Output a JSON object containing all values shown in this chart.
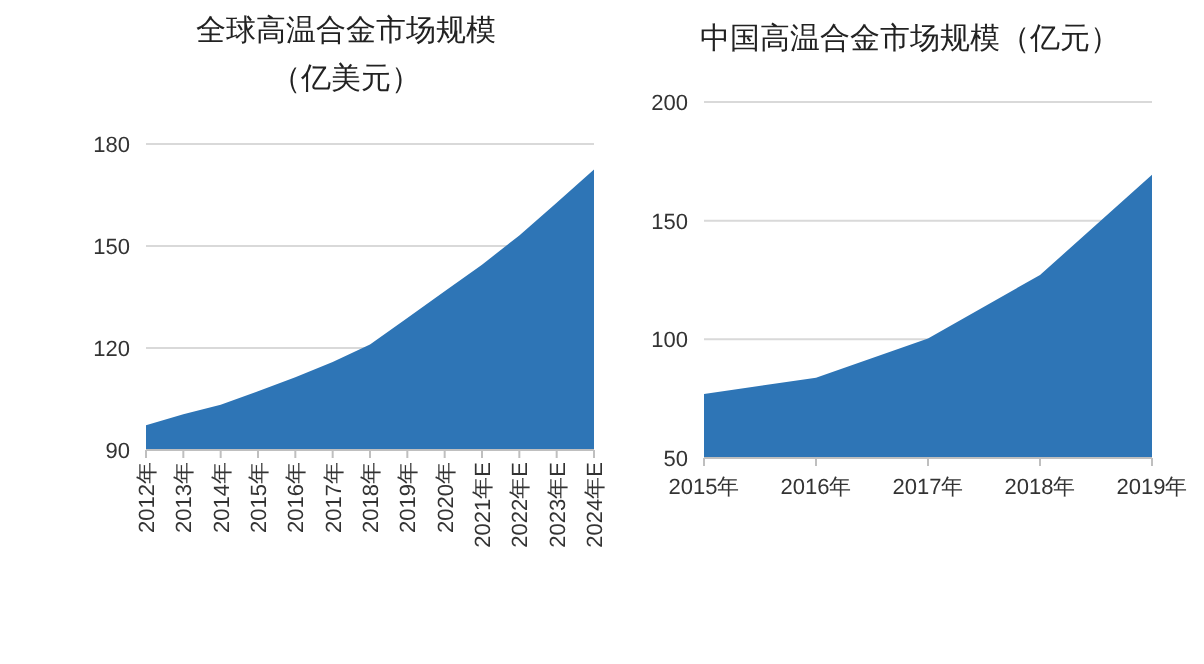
{
  "chart_data": [
    {
      "type": "area",
      "title": "全球高温合金市场规模（亿美元）",
      "categories": [
        "2012年",
        "2013年",
        "2014年",
        "2015年",
        "2016年",
        "2017年",
        "2018年",
        "2019年",
        "2020年",
        "2021年E",
        "2022年E",
        "2023年E",
        "2024年E"
      ],
      "series": [
        {
          "color": "#2e75b6",
          "values": [
            97.3,
            100.5,
            103.3,
            107.3,
            111.4,
            115.9,
            121,
            128.8,
            136.7,
            144.5,
            153.1,
            162.7,
            172.5
          ]
        }
      ],
      "ylim": [
        90,
        180
      ],
      "yticks": [
        90,
        120,
        150,
        180
      ],
      "grid": "y"
    },
    {
      "type": "area",
      "title": "中国高温合金市场规模（亿元）",
      "categories": [
        "2015年",
        "2016年",
        "2017年",
        "2018年",
        "2019年"
      ],
      "series": [
        {
          "color": "#2e75b6",
          "values": [
            77,
            83.8,
            100.4,
            127.1,
            169.3
          ]
        }
      ],
      "ylim": [
        50,
        200
      ],
      "yticks": [
        50,
        100,
        150,
        200
      ],
      "grid": "y"
    }
  ]
}
